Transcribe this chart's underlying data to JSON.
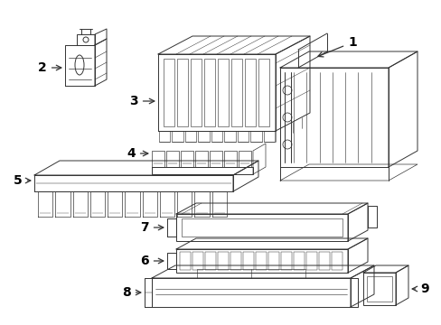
{
  "background_color": "#ffffff",
  "line_color": "#333333",
  "label_color": "#000000",
  "figsize": [
    4.89,
    3.6
  ],
  "dpi": 100,
  "font_size": 10,
  "lw": 0.7
}
